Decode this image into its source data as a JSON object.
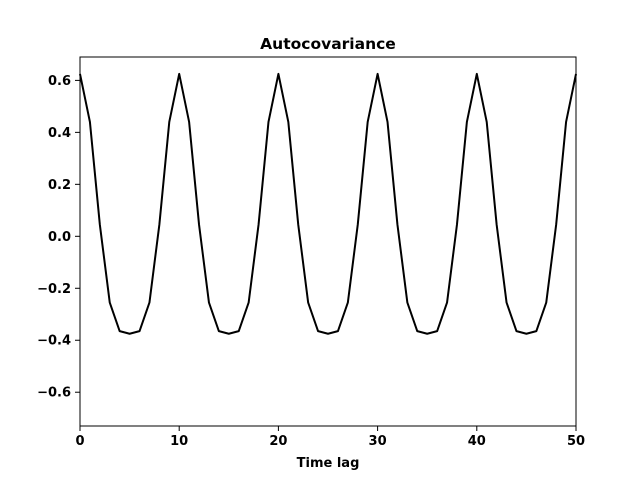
{
  "chart_data": {
    "type": "line",
    "title": "Autocovariance",
    "xlabel": "Time lag",
    "ylabel": "",
    "xlim": [
      0,
      50
    ],
    "ylim": [
      -0.73,
      0.69
    ],
    "xticks": [
      0,
      10,
      20,
      30,
      40,
      50
    ],
    "yticks": [
      -0.6,
      -0.4,
      -0.2,
      0.0,
      0.2,
      0.4,
      0.6
    ],
    "xtick_labels": [
      "0",
      "10",
      "20",
      "30",
      "40",
      "50"
    ],
    "ytick_labels": [
      "−0.6",
      "−0.4",
      "−0.2",
      "0.0",
      "0.2",
      "0.4",
      "0.6"
    ],
    "grid": false,
    "series": [
      {
        "color": "#000000",
        "x": [
          0,
          1,
          2,
          3,
          4,
          5,
          6,
          7,
          8,
          9,
          10,
          11,
          12,
          13,
          14,
          15,
          16,
          17,
          18,
          19,
          20,
          21,
          22,
          23,
          24,
          25,
          26,
          27,
          28,
          29,
          30,
          31,
          32,
          33,
          34,
          35,
          36,
          37,
          38,
          39,
          40,
          41,
          42,
          43,
          44,
          45,
          46,
          47,
          48,
          49,
          50
        ],
        "y": [
          0.625,
          0.44,
          0.045,
          -0.255,
          -0.365,
          -0.375,
          -0.365,
          -0.255,
          0.045,
          0.44,
          0.625,
          0.44,
          0.045,
          -0.255,
          -0.365,
          -0.375,
          -0.365,
          -0.255,
          0.045,
          0.44,
          0.625,
          0.44,
          0.045,
          -0.255,
          -0.365,
          -0.375,
          -0.365,
          -0.255,
          0.045,
          0.44,
          0.625,
          0.44,
          0.045,
          -0.255,
          -0.365,
          -0.375,
          -0.365,
          -0.255,
          0.045,
          0.44,
          0.625,
          0.44,
          0.045,
          -0.255,
          -0.365,
          -0.375,
          -0.365,
          -0.255,
          0.045,
          0.44,
          0.625
        ]
      }
    ]
  }
}
